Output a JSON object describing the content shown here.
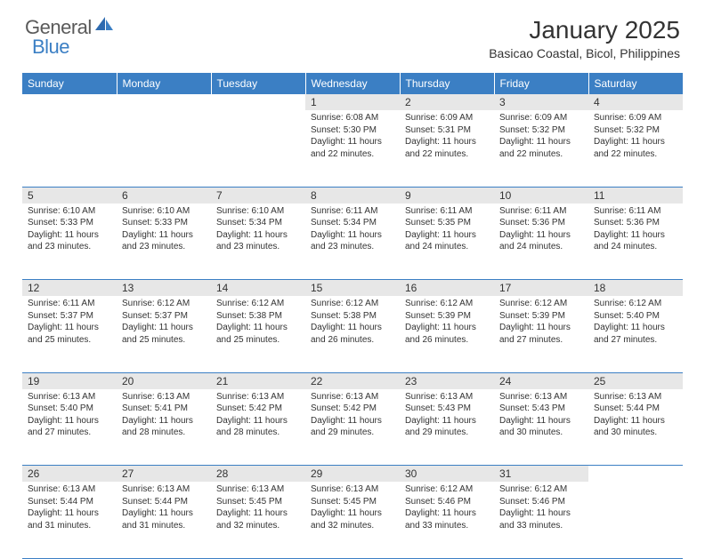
{
  "brand": {
    "part1": "General",
    "part2": "Blue"
  },
  "title": "January 2025",
  "location": "Basicao Coastal, Bicol, Philippines",
  "header_bg": "#3b7fc4",
  "daynum_bg": "#e7e7e7",
  "text_color": "#333333",
  "weekdays": [
    "Sunday",
    "Monday",
    "Tuesday",
    "Wednesday",
    "Thursday",
    "Friday",
    "Saturday"
  ],
  "weeks": [
    [
      null,
      null,
      null,
      {
        "n": "1",
        "sr": "6:08 AM",
        "ss": "5:30 PM",
        "dl": "11 hours and 22 minutes."
      },
      {
        "n": "2",
        "sr": "6:09 AM",
        "ss": "5:31 PM",
        "dl": "11 hours and 22 minutes."
      },
      {
        "n": "3",
        "sr": "6:09 AM",
        "ss": "5:32 PM",
        "dl": "11 hours and 22 minutes."
      },
      {
        "n": "4",
        "sr": "6:09 AM",
        "ss": "5:32 PM",
        "dl": "11 hours and 22 minutes."
      }
    ],
    [
      {
        "n": "5",
        "sr": "6:10 AM",
        "ss": "5:33 PM",
        "dl": "11 hours and 23 minutes."
      },
      {
        "n": "6",
        "sr": "6:10 AM",
        "ss": "5:33 PM",
        "dl": "11 hours and 23 minutes."
      },
      {
        "n": "7",
        "sr": "6:10 AM",
        "ss": "5:34 PM",
        "dl": "11 hours and 23 minutes."
      },
      {
        "n": "8",
        "sr": "6:11 AM",
        "ss": "5:34 PM",
        "dl": "11 hours and 23 minutes."
      },
      {
        "n": "9",
        "sr": "6:11 AM",
        "ss": "5:35 PM",
        "dl": "11 hours and 24 minutes."
      },
      {
        "n": "10",
        "sr": "6:11 AM",
        "ss": "5:36 PM",
        "dl": "11 hours and 24 minutes."
      },
      {
        "n": "11",
        "sr": "6:11 AM",
        "ss": "5:36 PM",
        "dl": "11 hours and 24 minutes."
      }
    ],
    [
      {
        "n": "12",
        "sr": "6:11 AM",
        "ss": "5:37 PM",
        "dl": "11 hours and 25 minutes."
      },
      {
        "n": "13",
        "sr": "6:12 AM",
        "ss": "5:37 PM",
        "dl": "11 hours and 25 minutes."
      },
      {
        "n": "14",
        "sr": "6:12 AM",
        "ss": "5:38 PM",
        "dl": "11 hours and 25 minutes."
      },
      {
        "n": "15",
        "sr": "6:12 AM",
        "ss": "5:38 PM",
        "dl": "11 hours and 26 minutes."
      },
      {
        "n": "16",
        "sr": "6:12 AM",
        "ss": "5:39 PM",
        "dl": "11 hours and 26 minutes."
      },
      {
        "n": "17",
        "sr": "6:12 AM",
        "ss": "5:39 PM",
        "dl": "11 hours and 27 minutes."
      },
      {
        "n": "18",
        "sr": "6:12 AM",
        "ss": "5:40 PM",
        "dl": "11 hours and 27 minutes."
      }
    ],
    [
      {
        "n": "19",
        "sr": "6:13 AM",
        "ss": "5:40 PM",
        "dl": "11 hours and 27 minutes."
      },
      {
        "n": "20",
        "sr": "6:13 AM",
        "ss": "5:41 PM",
        "dl": "11 hours and 28 minutes."
      },
      {
        "n": "21",
        "sr": "6:13 AM",
        "ss": "5:42 PM",
        "dl": "11 hours and 28 minutes."
      },
      {
        "n": "22",
        "sr": "6:13 AM",
        "ss": "5:42 PM",
        "dl": "11 hours and 29 minutes."
      },
      {
        "n": "23",
        "sr": "6:13 AM",
        "ss": "5:43 PM",
        "dl": "11 hours and 29 minutes."
      },
      {
        "n": "24",
        "sr": "6:13 AM",
        "ss": "5:43 PM",
        "dl": "11 hours and 30 minutes."
      },
      {
        "n": "25",
        "sr": "6:13 AM",
        "ss": "5:44 PM",
        "dl": "11 hours and 30 minutes."
      }
    ],
    [
      {
        "n": "26",
        "sr": "6:13 AM",
        "ss": "5:44 PM",
        "dl": "11 hours and 31 minutes."
      },
      {
        "n": "27",
        "sr": "6:13 AM",
        "ss": "5:44 PM",
        "dl": "11 hours and 31 minutes."
      },
      {
        "n": "28",
        "sr": "6:13 AM",
        "ss": "5:45 PM",
        "dl": "11 hours and 32 minutes."
      },
      {
        "n": "29",
        "sr": "6:13 AM",
        "ss": "5:45 PM",
        "dl": "11 hours and 32 minutes."
      },
      {
        "n": "30",
        "sr": "6:12 AM",
        "ss": "5:46 PM",
        "dl": "11 hours and 33 minutes."
      },
      {
        "n": "31",
        "sr": "6:12 AM",
        "ss": "5:46 PM",
        "dl": "11 hours and 33 minutes."
      },
      null
    ]
  ],
  "labels": {
    "sunrise": "Sunrise:",
    "sunset": "Sunset:",
    "daylight": "Daylight:"
  }
}
